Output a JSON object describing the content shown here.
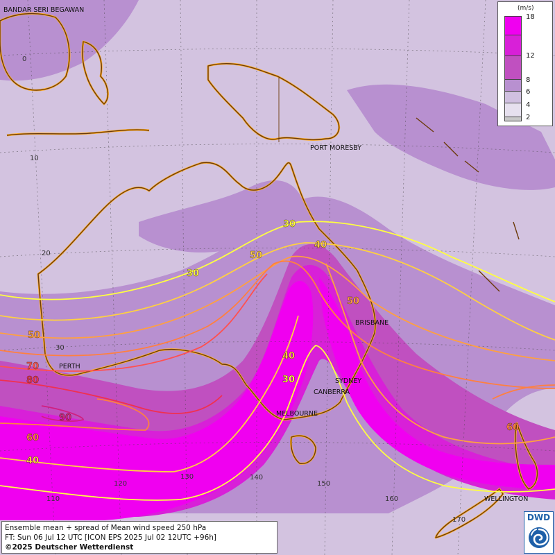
{
  "cities": [
    {
      "key": "bandar",
      "name": "BANDAR SERI BEGAWAN"
    },
    {
      "key": "port_moresby",
      "name": "PORT MORESBY"
    },
    {
      "key": "brisbane",
      "name": "BRISBANE"
    },
    {
      "key": "perth",
      "name": "PERTH"
    },
    {
      "key": "sydney",
      "name": "SYDNEY"
    },
    {
      "key": "canberra",
      "name": "CANBERRA"
    },
    {
      "key": "melbourne",
      "name": "MELBOURNE"
    },
    {
      "key": "wellington",
      "name": "WELLINGTON"
    }
  ],
  "lat_labels": [
    "0",
    "10",
    "20",
    "30"
  ],
  "lon_labels": [
    "110",
    "120",
    "130",
    "140",
    "150",
    "160",
    "170"
  ],
  "contour_labels": [
    "30",
    "40",
    "30",
    "50",
    "50",
    "70",
    "80",
    "90",
    "60",
    "40",
    "40",
    "30",
    "60"
  ],
  "legend": {
    "unit": "(m/s)",
    "bands": [
      {
        "label": "18",
        "color": "#f000f0"
      },
      {
        "label": "12",
        "color": "#d820d8"
      },
      {
        "label": "8",
        "color": "#c050c0"
      },
      {
        "label": "6",
        "color": "#b890d0"
      },
      {
        "label": "4",
        "color": "#d0c0e0"
      },
      {
        "label": "2",
        "color": "#c8c8c8"
      }
    ]
  },
  "info": {
    "line1": "Ensemble mean + spread of Mean wind speed 250 hPa",
    "line2": "FT: Sun 06 Jul 12 UTC [ICON EPS 2025 Jul 02 12UTC +96h]",
    "line3": "©2025 Deutscher Wetterdienst"
  },
  "logo": {
    "text": "DWD"
  },
  "colors": {
    "spread_light": "#d3c3e0",
    "spread_medium": "#b890d0",
    "spread_strong": "#c050c0",
    "spread_stronger": "#d820d8",
    "spread_max": "#f000f0",
    "contour_30": "#ffff40",
    "contour_40": "#ffd040",
    "contour_50": "#ffa040",
    "contour_60": "#ff8040",
    "contour_70": "#ff5050",
    "contour_80": "#f03050",
    "contour_90": "#d02080",
    "coastline": "#6b3a0a",
    "coastline_halo": "#ffb030"
  }
}
